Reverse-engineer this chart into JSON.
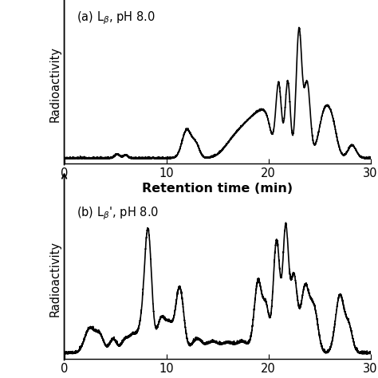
{
  "xlabel": "Retention time (min)",
  "ylabel": "Radioactivity",
  "xlim": [
    0,
    30
  ],
  "xticks": [
    0,
    10,
    20,
    30
  ],
  "line_color": "#000000",
  "bg_color": "#ffffff",
  "linewidth": 1.2,
  "panel_a_label": "(a) L$_{\\beta}$, pH 8.0",
  "panel_b_label": "(b) L$_{\\beta}$\\', pH 8.0"
}
